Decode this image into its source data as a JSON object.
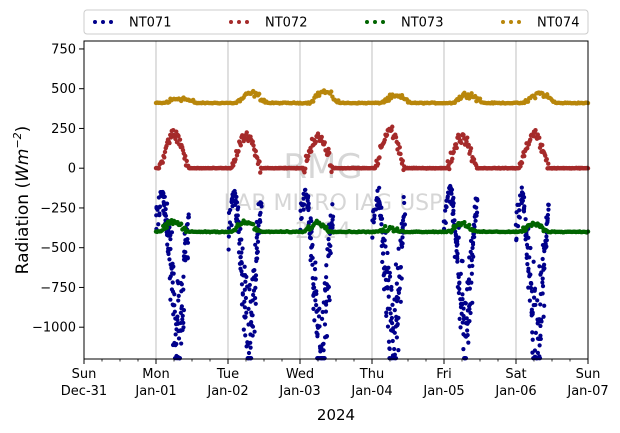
{
  "chart_data": {
    "type": "scatter",
    "title": "",
    "ylabel": "Radiation (Wm⁻²)",
    "ylabel_main": "Radiation (",
    "ylabel_unit": "Wm",
    "ylabel_exp": "−2",
    "ylabel_close": ")",
    "xlabel": "2024",
    "ylim": [
      -1200,
      800
    ],
    "xlim": [
      "2023-12-31T00:00",
      "2024-01-07T00:00"
    ],
    "y_ticks": [
      750,
      500,
      250,
      0,
      -250,
      -500,
      -750,
      -1000
    ],
    "y_tick_labels": [
      "750",
      "500",
      "250",
      "0",
      "−250",
      "−500",
      "−750",
      "−1000"
    ],
    "x_ticks": [
      {
        "date": "2023-12-31",
        "day": "Sun",
        "label": "Dec-31"
      },
      {
        "date": "2024-01-01",
        "day": "Mon",
        "label": "Jan-01"
      },
      {
        "date": "2024-01-02",
        "day": "Tue",
        "label": "Jan-02"
      },
      {
        "date": "2024-01-03",
        "day": "Wed",
        "label": "Jan-03"
      },
      {
        "date": "2024-01-04",
        "day": "Thu",
        "label": "Jan-04"
      },
      {
        "date": "2024-01-05",
        "day": "Fri",
        "label": "Jan-05"
      },
      {
        "date": "2024-01-06",
        "day": "Sat",
        "label": "Jan-06"
      },
      {
        "date": "2024-01-07",
        "day": "Sun",
        "label": "Jan-07"
      }
    ],
    "grid": "vertical",
    "legend_position": "top",
    "watermark": [
      "RMG",
      "LAB MICRO IAG USP",
      "2024"
    ],
    "series": [
      {
        "name": "NT071",
        "color": "#00008b",
        "description": "net longwave-like negative daytime dips",
        "points": [
          [
            "2024-01-01T00:00",
            -360
          ],
          [
            "2024-01-01T02:00",
            -140
          ],
          [
            "2024-01-01T03:00",
            -250
          ],
          [
            "2024-01-01T04:00",
            -450
          ],
          [
            "2024-01-01T05:00",
            -650
          ],
          [
            "2024-01-01T06:00",
            -850
          ],
          [
            "2024-01-01T07:00",
            -1000
          ],
          [
            "2024-01-01T08:00",
            -1100
          ],
          [
            "2024-01-01T09:00",
            -800
          ],
          [
            "2024-01-01T10:00",
            -500
          ],
          [
            "2024-01-01T11:00",
            -300
          ],
          [
            "2024-01-02T00:00",
            -360
          ],
          [
            "2024-01-02T02:00",
            -150
          ],
          [
            "2024-01-02T03:00",
            -300
          ],
          [
            "2024-01-02T04:00",
            -500
          ],
          [
            "2024-01-02T05:00",
            -750
          ],
          [
            "2024-01-02T06:00",
            -950
          ],
          [
            "2024-01-02T07:00",
            -1160
          ],
          [
            "2024-01-02T08:00",
            -1050
          ],
          [
            "2024-01-02T09:00",
            -700
          ],
          [
            "2024-01-02T10:00",
            -450
          ],
          [
            "2024-01-02T11:00",
            -230
          ],
          [
            "2024-01-03T00:00",
            -360
          ],
          [
            "2024-01-03T02:00",
            -130
          ],
          [
            "2024-01-03T03:00",
            -300
          ],
          [
            "2024-01-03T04:00",
            -550
          ],
          [
            "2024-01-03T05:00",
            -800
          ],
          [
            "2024-01-03T06:00",
            -1000
          ],
          [
            "2024-01-03T07:00",
            -1170
          ],
          [
            "2024-01-03T08:00",
            -1100
          ],
          [
            "2024-01-03T09:00",
            -800
          ],
          [
            "2024-01-03T10:00",
            -500
          ],
          [
            "2024-01-03T11:00",
            -250
          ],
          [
            "2024-01-04T00:00",
            -360
          ],
          [
            "2024-01-04T02:00",
            -150
          ],
          [
            "2024-01-04T03:00",
            -300
          ],
          [
            "2024-01-04T04:00",
            -520
          ],
          [
            "2024-01-04T05:00",
            -780
          ],
          [
            "2024-01-04T06:00",
            -1000
          ],
          [
            "2024-01-04T07:00",
            -1150
          ],
          [
            "2024-01-04T08:00",
            -1050
          ],
          [
            "2024-01-04T09:00",
            -750
          ],
          [
            "2024-01-04T10:00",
            -450
          ],
          [
            "2024-01-04T11:00",
            -230
          ],
          [
            "2024-01-05T00:00",
            -360
          ],
          [
            "2024-01-05T02:00",
            -110
          ],
          [
            "2024-01-05T03:00",
            -250
          ],
          [
            "2024-01-05T04:00",
            -450
          ],
          [
            "2024-01-05T05:00",
            -700
          ],
          [
            "2024-01-05T06:00",
            -900
          ],
          [
            "2024-01-05T07:00",
            -1100
          ],
          [
            "2024-01-05T08:00",
            -900
          ],
          [
            "2024-01-05T09:00",
            -650
          ],
          [
            "2024-01-05T10:00",
            -400
          ],
          [
            "2024-01-05T11:00",
            -200
          ],
          [
            "2024-01-06T00:00",
            -360
          ],
          [
            "2024-01-06T02:00",
            -150
          ],
          [
            "2024-01-06T03:00",
            -300
          ],
          [
            "2024-01-06T04:00",
            -500
          ],
          [
            "2024-01-06T05:00",
            -800
          ],
          [
            "2024-01-06T06:00",
            -1000
          ],
          [
            "2024-01-06T07:00",
            -1150
          ],
          [
            "2024-01-06T08:00",
            -1000
          ],
          [
            "2024-01-06T09:00",
            -700
          ],
          [
            "2024-01-06T10:00",
            -450
          ],
          [
            "2024-01-06T11:00",
            -200
          ]
        ]
      },
      {
        "name": "NT072",
        "color": "#a52a2a",
        "description": "zero at night, positive daytime humps",
        "baseline": 0,
        "day_peaks": [
          [
            "2024-01-01T06:00",
            210
          ],
          [
            "2024-01-02T06:00",
            200
          ],
          [
            "2024-01-03T06:00",
            200
          ],
          [
            "2024-01-04T06:00",
            235
          ],
          [
            "2024-01-05T06:00",
            200
          ],
          [
            "2024-01-06T06:00",
            215
          ]
        ]
      },
      {
        "name": "NT073",
        "color": "#006400",
        "description": "nearly flat around -400 with small daytime rises",
        "baseline": -400,
        "day_peaks": [
          [
            "2024-01-01T06:00",
            -340
          ],
          [
            "2024-01-02T06:00",
            -340
          ],
          [
            "2024-01-03T06:00",
            -345
          ],
          [
            "2024-01-04T06:00",
            -385
          ],
          [
            "2024-01-05T06:00",
            -345
          ],
          [
            "2024-01-06T06:00",
            -355
          ]
        ]
      },
      {
        "name": "NT074",
        "color": "#b8860b",
        "description": "flat around 410 with small daytime humps",
        "baseline": 410,
        "day_peaks": [
          [
            "2024-01-01T08:00",
            440
          ],
          [
            "2024-01-02T08:00",
            470
          ],
          [
            "2024-01-03T08:00",
            480
          ],
          [
            "2024-01-04T08:00",
            450
          ],
          [
            "2024-01-05T08:00",
            465
          ],
          [
            "2024-01-06T08:00",
            470
          ]
        ]
      }
    ]
  }
}
